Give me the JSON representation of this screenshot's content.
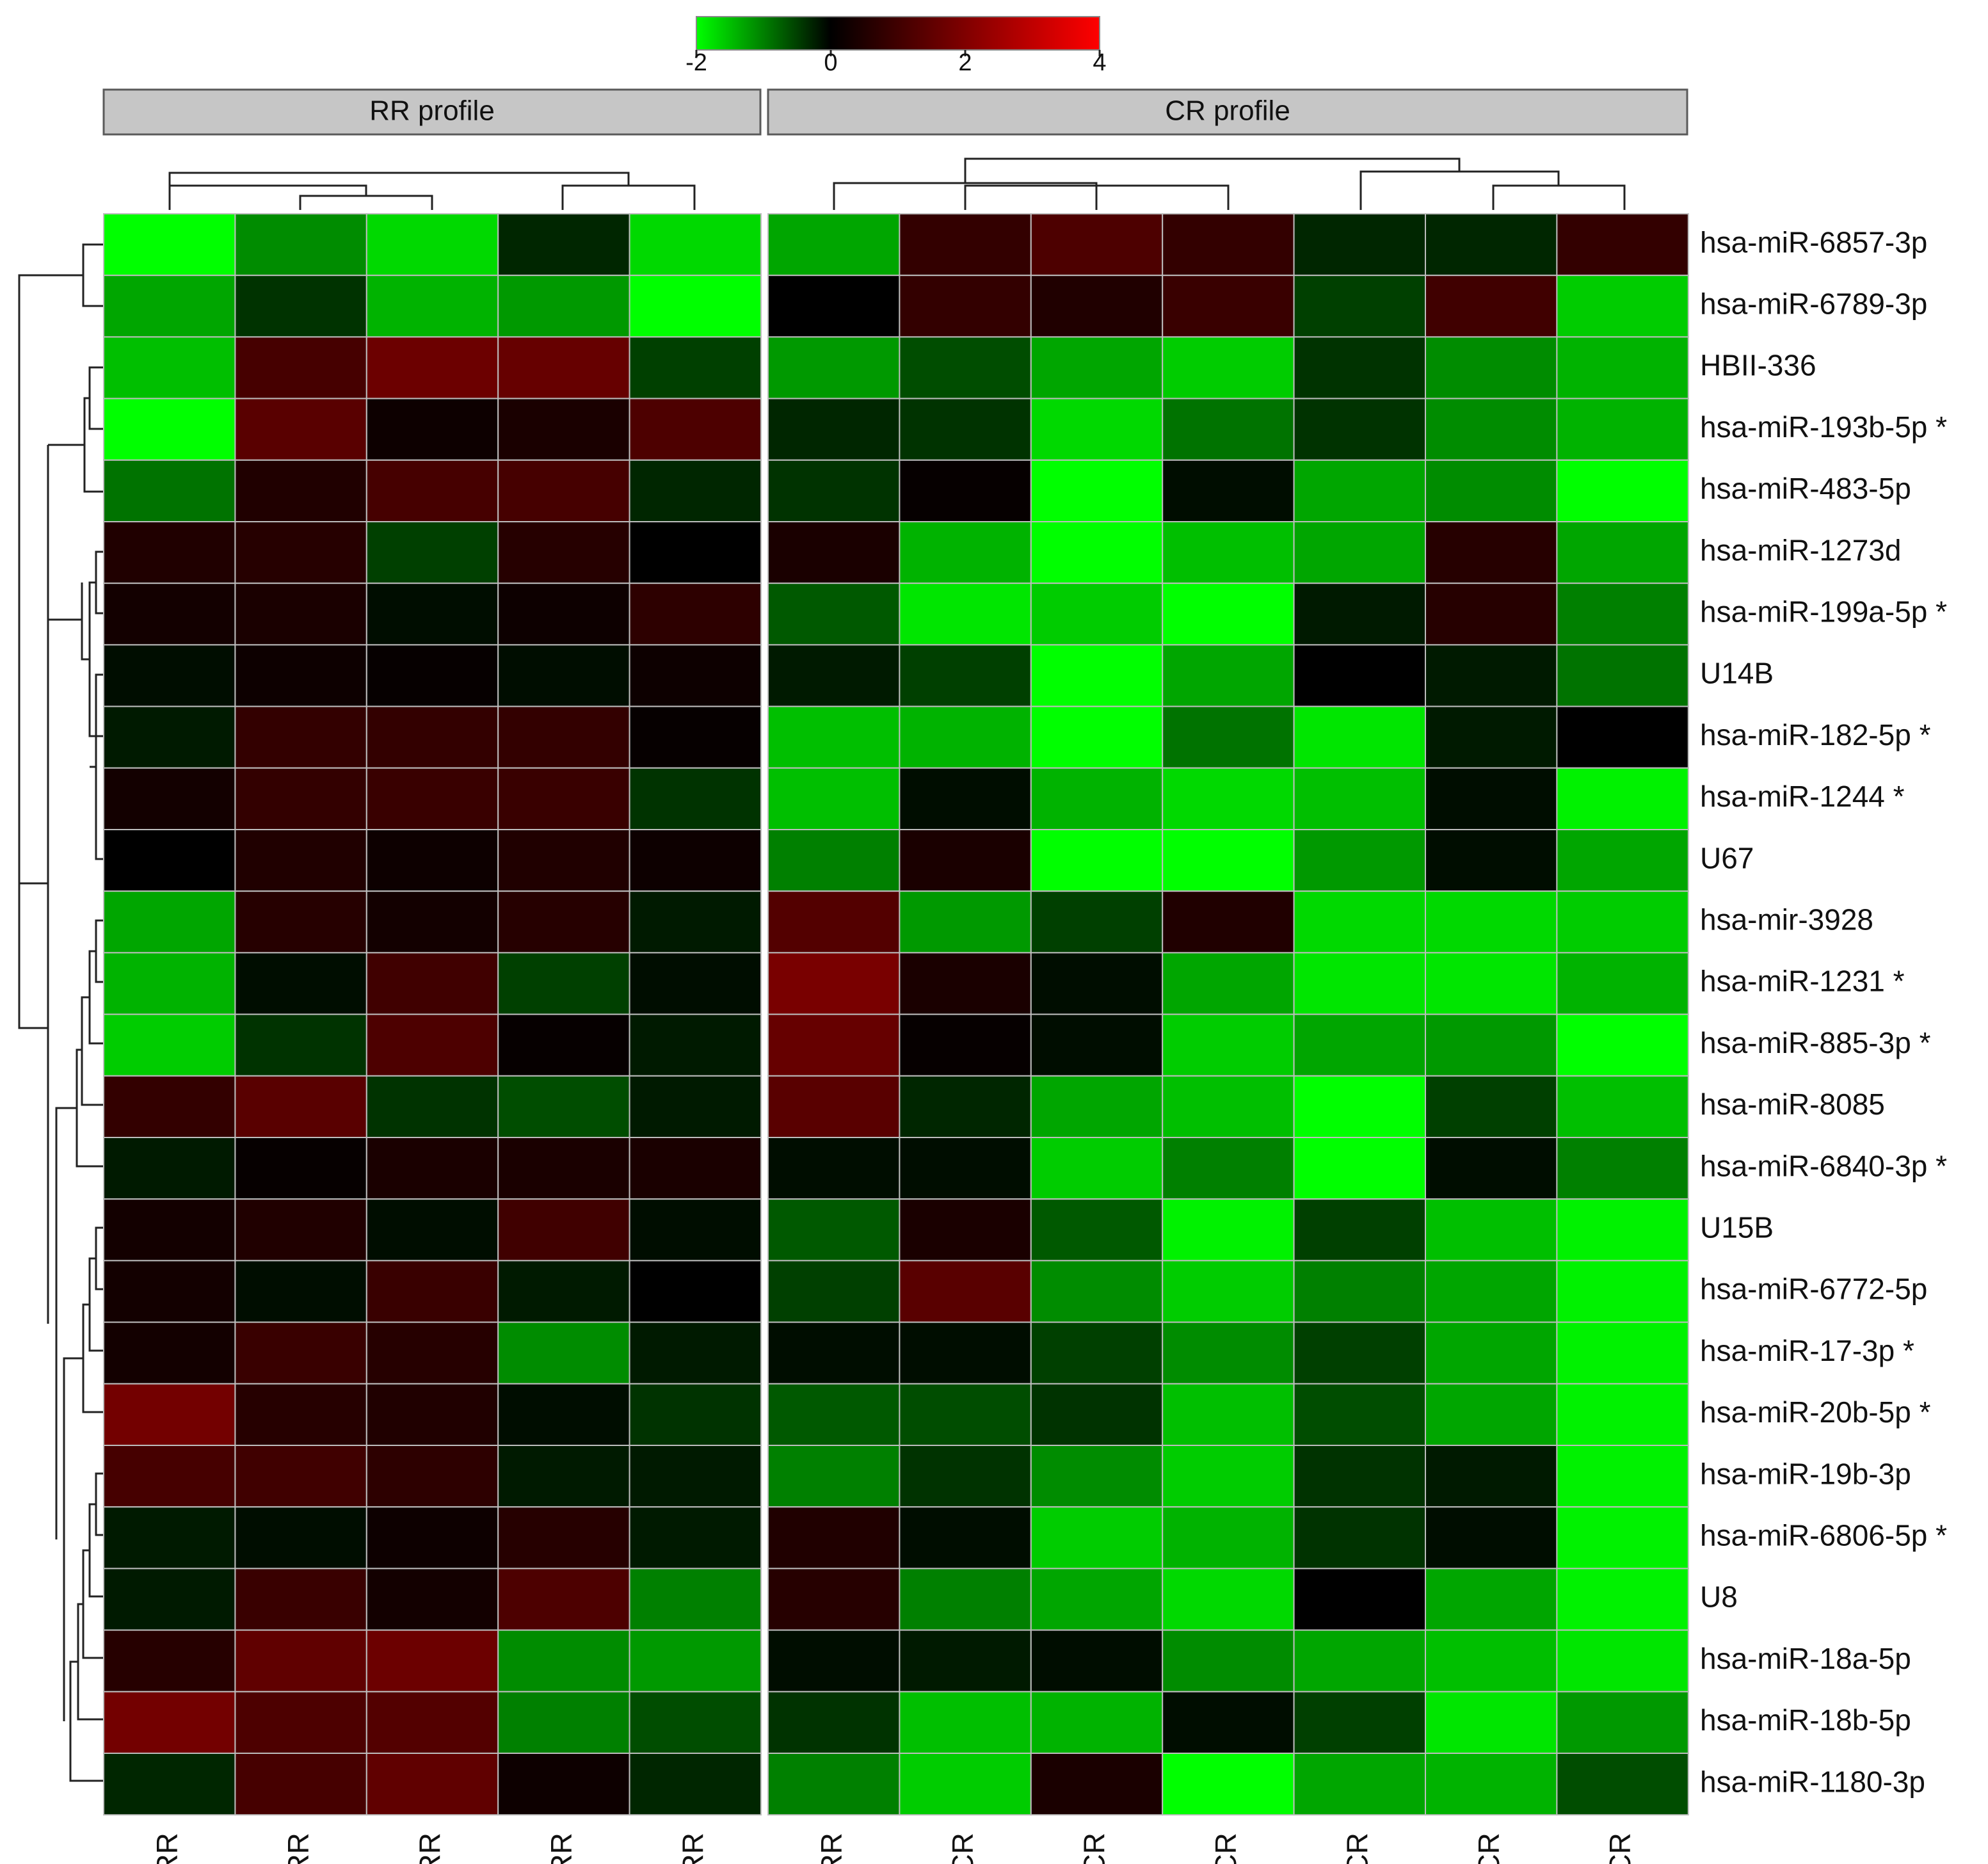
{
  "chart_data": {
    "type": "heatmap",
    "title": "",
    "color_scale": {
      "min": -2,
      "max": 4,
      "ticks": [
        "-2",
        "0",
        "2",
        "4"
      ],
      "low_color": "#00ff00",
      "mid_color": "#000000",
      "high_color": "#ff0000"
    },
    "panels": [
      {
        "label": "RR profile",
        "columns": [
          "RR",
          "RR",
          "RR",
          "RR",
          "RR"
        ]
      },
      {
        "label": "CR profile",
        "columns": [
          "RR",
          "CR",
          "CR",
          "CR",
          "CR",
          "CR",
          "CR"
        ]
      }
    ],
    "rows": [
      "hsa-miR-6857-3p",
      "hsa-miR-6789-3p",
      "HBII-336",
      "hsa-miR-193b-5p *",
      "hsa-miR-483-5p",
      "hsa-miR-1273d",
      "hsa-miR-199a-5p *",
      "U14B",
      "hsa-miR-182-5p *",
      "hsa-miR-1244 *",
      "U67",
      "hsa-mir-3928",
      "hsa-miR-1231 *",
      "hsa-miR-885-3p *",
      "hsa-miR-8085",
      "hsa-miR-6840-3p *",
      "U15B",
      "hsa-miR-6772-5p",
      "hsa-miR-17-3p *",
      "hsa-miR-20b-5p *",
      "hsa-miR-19b-3p",
      "hsa-miR-6806-5p *",
      "U8",
      "hsa-miR-18a-5p",
      "hsa-miR-18b-5p",
      "hsa-miR-1180-3p"
    ],
    "values": [
      [
        -2.0,
        -1.1,
        -1.7,
        -0.3,
        -1.7,
        -1.3,
        0.8,
        1.2,
        0.8,
        -0.3,
        -0.3,
        0.8
      ],
      [
        -1.3,
        -0.4,
        -1.4,
        -1.2,
        -2.0,
        0.0,
        0.8,
        0.5,
        0.9,
        -0.5,
        1.0,
        -1.6
      ],
      [
        -1.5,
        1.1,
        1.7,
        1.6,
        -0.5,
        -1.2,
        -0.6,
        -1.3,
        -1.6,
        -0.4,
        -1.1,
        -1.4
      ],
      [
        -2.0,
        1.4,
        0.2,
        0.4,
        1.2,
        -0.3,
        -0.4,
        -1.7,
        -0.9,
        -0.4,
        -1.1,
        -1.4
      ],
      [
        -0.9,
        0.5,
        1.1,
        1.1,
        -0.3,
        -0.4,
        0.1,
        -2.0,
        -0.1,
        -1.3,
        -1.1,
        -2.0
      ],
      [
        0.5,
        0.6,
        -0.5,
        0.6,
        0.0,
        0.4,
        -1.4,
        -2.0,
        -1.5,
        -1.3,
        0.6,
        -1.3
      ],
      [
        0.3,
        0.4,
        -0.1,
        0.2,
        0.7,
        -0.7,
        -1.8,
        -1.6,
        -2.0,
        -0.2,
        0.6,
        -1.0
      ],
      [
        -0.1,
        0.2,
        0.1,
        -0.1,
        0.2,
        -0.2,
        -0.5,
        -2.0,
        -1.3,
        0.0,
        -0.2,
        -0.9
      ],
      [
        -0.2,
        0.8,
        0.8,
        0.8,
        0.1,
        -1.5,
        -1.4,
        -2.0,
        -0.9,
        -1.8,
        -0.2,
        0.0
      ],
      [
        0.3,
        0.8,
        0.9,
        0.9,
        -0.4,
        -1.5,
        -0.1,
        -1.4,
        -1.7,
        -1.5,
        -0.1,
        -1.9
      ],
      [
        0.0,
        0.5,
        0.2,
        0.5,
        0.2,
        -1.0,
        0.4,
        -2.0,
        -2.0,
        -1.2,
        -0.1,
        -1.3
      ],
      [
        -1.3,
        0.6,
        0.3,
        0.6,
        -0.2,
        1.3,
        -1.2,
        -0.5,
        0.5,
        -1.7,
        -1.7,
        -1.6
      ],
      [
        -1.4,
        -0.1,
        1.0,
        -0.5,
        -0.1,
        1.9,
        0.4,
        -0.1,
        -1.3,
        -1.8,
        -1.8,
        -1.4
      ],
      [
        -1.6,
        -0.4,
        1.2,
        0.1,
        -0.2,
        1.6,
        0.1,
        -0.1,
        -1.6,
        -1.3,
        -1.2,
        -2.0
      ],
      [
        0.8,
        1.4,
        -0.4,
        -0.6,
        -0.2,
        1.4,
        -0.3,
        -1.3,
        -1.5,
        -2.0,
        -0.5,
        -1.5
      ],
      [
        -0.2,
        0.1,
        0.4,
        0.4,
        0.4,
        -0.1,
        -0.1,
        -1.6,
        -1.0,
        -2.0,
        -0.1,
        -1.0
      ],
      [
        0.3,
        0.5,
        -0.1,
        1.0,
        -0.1,
        -0.7,
        0.4,
        -0.7,
        -1.9,
        -0.5,
        -1.5,
        -1.9
      ],
      [
        0.3,
        -0.1,
        0.9,
        -0.2,
        0.0,
        -0.5,
        1.4,
        -1.1,
        -1.6,
        -1.0,
        -1.3,
        -1.9
      ],
      [
        0.3,
        0.9,
        0.6,
        -1.1,
        -0.2,
        -0.1,
        -0.1,
        -0.5,
        -1.1,
        -0.5,
        -1.3,
        -1.9
      ],
      [
        1.8,
        0.6,
        0.5,
        -0.1,
        -0.4,
        -0.7,
        -0.6,
        -0.4,
        -1.5,
        -0.6,
        -1.3,
        -1.9
      ],
      [
        1.1,
        1.0,
        0.7,
        -0.2,
        -0.2,
        -1.0,
        -0.4,
        -1.1,
        -1.6,
        -0.4,
        -0.2,
        -1.9
      ],
      [
        -0.2,
        -0.1,
        0.2,
        0.6,
        -0.2,
        0.5,
        -0.1,
        -1.6,
        -1.4,
        -0.4,
        -0.1,
        -1.9
      ],
      [
        -0.2,
        0.9,
        0.3,
        1.2,
        -1.0,
        0.6,
        -1.0,
        -1.3,
        -1.7,
        0.0,
        -1.3,
        -1.9
      ],
      [
        0.6,
        1.5,
        1.7,
        -1.1,
        -1.2,
        -0.1,
        -0.2,
        -0.1,
        -1.1,
        -1.3,
        -1.5,
        -1.8
      ],
      [
        1.8,
        1.2,
        1.3,
        -1.0,
        -0.6,
        -0.4,
        -1.5,
        -1.4,
        -0.1,
        -0.5,
        -1.8,
        -1.2
      ],
      [
        -0.3,
        1.1,
        1.5,
        0.2,
        -0.3,
        -1.0,
        -1.6,
        0.4,
        -2.0,
        -1.3,
        -1.4,
        -0.6
      ]
    ]
  }
}
